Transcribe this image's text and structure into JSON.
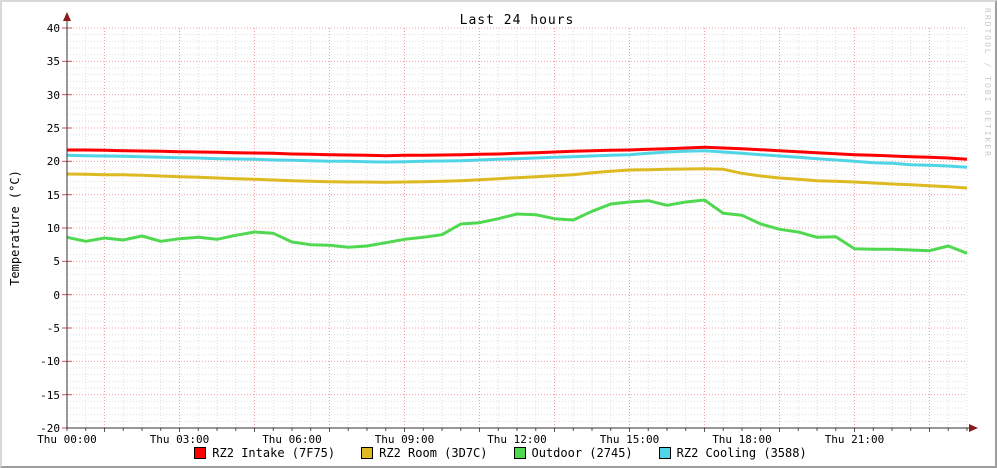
{
  "title": "Last 24 hours",
  "ylabel": "Temperature (°C)",
  "watermark": "RRDTOOL / TOBI OETIKER",
  "colors": {
    "background": "#ffffff",
    "border_light": "#d8d8d8",
    "border_dark": "#9e9e9e",
    "axis": "#333333",
    "arrow": "#8b1a1a",
    "minor_grid": "#dedede",
    "major_grid": "#f0a0a0",
    "tick": "#555555",
    "y_tick_mark": "#cc5555",
    "watermark_text": "#c9c9c9"
  },
  "chart_data": {
    "type": "line",
    "title": "Last 24 hours",
    "xlabel": "",
    "ylabel": "Temperature (°C)",
    "ylim": [
      -20,
      40
    ],
    "xlim_hours": [
      0,
      24
    ],
    "x_start_hour": 0,
    "x_step_hours": 0.5,
    "grid": {
      "minor_x_hours": 0.5,
      "major_x_hours": 2,
      "major_x_offset_hours": 1,
      "minor_y": 1,
      "major_y": 5,
      "style": "dotted"
    },
    "legend_position": "bottom-center",
    "y_ticks": [
      40,
      35,
      30,
      25,
      20,
      15,
      10,
      5,
      0,
      -5,
      -10,
      -15,
      -20
    ],
    "x_ticks": [
      {
        "hour": 0,
        "label": "Thu 00:00"
      },
      {
        "hour": 3,
        "label": "Thu 03:00"
      },
      {
        "hour": 6,
        "label": "Thu 06:00"
      },
      {
        "hour": 9,
        "label": "Thu 09:00"
      },
      {
        "hour": 12,
        "label": "Thu 12:00"
      },
      {
        "hour": 15,
        "label": "Thu 15:00"
      },
      {
        "hour": 18,
        "label": "Thu 18:00"
      },
      {
        "hour": 21,
        "label": "Thu 21:00"
      }
    ],
    "series": [
      {
        "name": "RZ2 Intake",
        "legend": "RZ2 Intake (7F75)",
        "color": "#ff0000",
        "values": [
          21.7,
          21.7,
          21.65,
          21.6,
          21.55,
          21.5,
          21.45,
          21.4,
          21.35,
          21.3,
          21.25,
          21.2,
          21.1,
          21.05,
          21.0,
          20.95,
          20.9,
          20.85,
          20.9,
          20.9,
          20.95,
          21.0,
          21.05,
          21.1,
          21.2,
          21.3,
          21.4,
          21.5,
          21.6,
          21.65,
          21.7,
          21.8,
          21.9,
          22.0,
          22.1,
          22.0,
          21.9,
          21.75,
          21.6,
          21.45,
          21.3,
          21.15,
          21.0,
          20.9,
          20.8,
          20.7,
          20.6,
          20.5,
          20.3
        ]
      },
      {
        "name": "RZ2 Room",
        "legend": "RZ2 Room (3D7C)",
        "color": "#ddb922",
        "values": [
          18.1,
          18.05,
          18.0,
          18.0,
          17.9,
          17.8,
          17.7,
          17.6,
          17.5,
          17.4,
          17.3,
          17.2,
          17.1,
          17.0,
          16.95,
          16.9,
          16.9,
          16.85,
          16.9,
          16.95,
          17.0,
          17.1,
          17.25,
          17.4,
          17.55,
          17.7,
          17.85,
          18.0,
          18.3,
          18.5,
          18.7,
          18.75,
          18.8,
          18.85,
          18.9,
          18.8,
          18.2,
          17.8,
          17.5,
          17.3,
          17.1,
          17.0,
          16.9,
          16.75,
          16.6,
          16.5,
          16.35,
          16.2,
          16.0
        ]
      },
      {
        "name": "Outdoor",
        "legend": "Outdoor (2745)",
        "color": "#50d950",
        "values": [
          8.6,
          8.0,
          8.5,
          8.2,
          8.8,
          8.0,
          8.4,
          8.6,
          8.3,
          8.9,
          9.4,
          9.2,
          7.9,
          7.5,
          7.4,
          7.1,
          7.3,
          7.8,
          8.3,
          8.6,
          9.0,
          10.6,
          10.8,
          11.4,
          12.1,
          12.0,
          11.4,
          11.2,
          12.5,
          13.6,
          13.9,
          14.1,
          13.4,
          13.9,
          14.2,
          12.2,
          11.9,
          10.6,
          9.8,
          9.4,
          8.6,
          8.7,
          6.9,
          6.8,
          6.8,
          6.7,
          6.6,
          7.3,
          6.2
        ]
      },
      {
        "name": "RZ2 Cooling",
        "legend": "RZ2 Cooling (3588)",
        "color": "#4fd5e6",
        "values": [
          20.9,
          20.85,
          20.8,
          20.75,
          20.7,
          20.6,
          20.55,
          20.5,
          20.4,
          20.35,
          20.3,
          20.2,
          20.15,
          20.1,
          20.0,
          20.0,
          19.95,
          19.9,
          19.95,
          20.0,
          20.05,
          20.1,
          20.2,
          20.3,
          20.4,
          20.5,
          20.6,
          20.7,
          20.8,
          20.9,
          21.0,
          21.2,
          21.4,
          21.5,
          21.6,
          21.4,
          21.2,
          21.0,
          20.8,
          20.6,
          20.4,
          20.2,
          20.0,
          19.8,
          19.7,
          19.5,
          19.4,
          19.3,
          19.1
        ]
      }
    ]
  }
}
